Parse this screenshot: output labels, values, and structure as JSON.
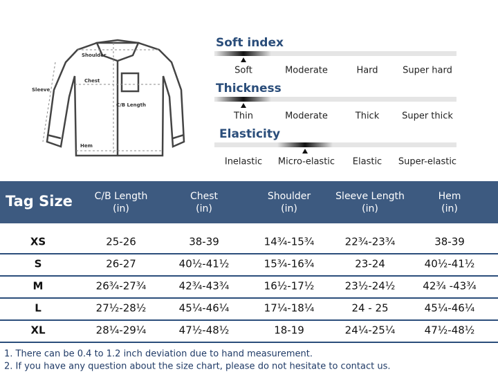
{
  "diagram": {
    "labels": [
      "Shoulder",
      "Chest",
      "Sleeve",
      "C/B Length",
      "Hem"
    ]
  },
  "scales": [
    {
      "title": "Soft index",
      "options": [
        "Soft",
        "Moderate",
        "Hard",
        "Super hard"
      ]
    },
    {
      "title": "Thickness",
      "options": [
        "Thin",
        "Moderate",
        "Thick",
        "Super thick"
      ]
    },
    {
      "title": "Elasticity",
      "options": [
        "Inelastic",
        "Micro-elastic",
        "Elastic",
        "Super-elastic"
      ]
    }
  ],
  "table": {
    "header": [
      "Tag Size",
      [
        "C/B Length",
        "(in)"
      ],
      [
        "Chest",
        "(in)"
      ],
      [
        "Shoulder",
        "(in)"
      ],
      [
        "Sleeve Length",
        "(in)"
      ],
      [
        "Hem",
        "(in)"
      ]
    ],
    "rows": [
      [
        "XS",
        "25-26",
        "38-39",
        "14¾-15¾",
        "22¾-23¾",
        "38-39"
      ],
      [
        "S",
        "26-27",
        "40½-41½",
        "15¾-16¾",
        "23-24",
        "40½-41½"
      ],
      [
        "M",
        "26¾-27¾",
        "42¾-43¾",
        "16½-17½",
        "23½-24½",
        "42¾ -43¾"
      ],
      [
        "L",
        "27½-28½",
        "45¼-46¼",
        "17¼-18¼",
        "24 - 25",
        "45¼-46¼"
      ],
      [
        "XL",
        "28¼-29¼",
        "47½-48½",
        "18-19",
        "24¼-25¼",
        "47½-48½"
      ]
    ]
  },
  "notes": [
    "1. There can be 0.4 to 1.2 inch deviation due to hand measurement.",
    "2. If you have any question about the size chart, please do not hesitate to contact us."
  ]
}
